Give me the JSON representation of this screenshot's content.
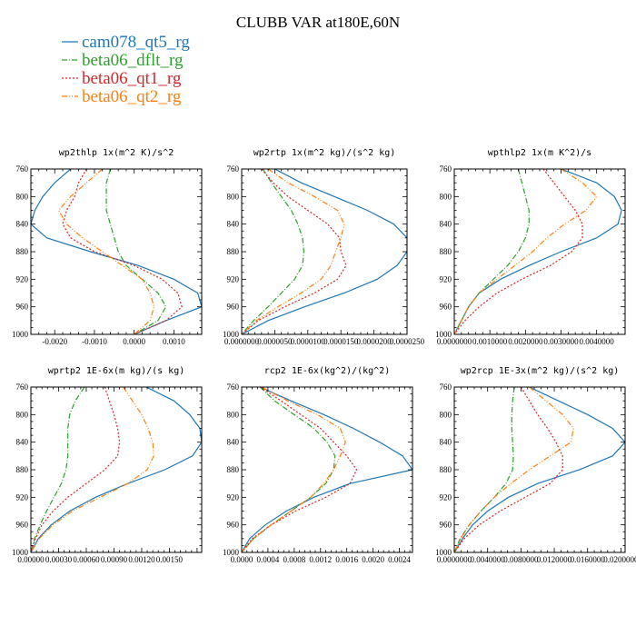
{
  "title": "CLUBB VAR at180E,60N",
  "colors": {
    "s0": "#1f77b4",
    "s1": "#2ca02c",
    "s2": "#d62728",
    "s3": "#ff7f0e"
  },
  "legend": [
    {
      "name": "cam078_qt5_rg",
      "color": "#1f77b4",
      "dash": "none"
    },
    {
      "name": "beta06_dflt_rg",
      "color": "#2ca02c",
      "dash": "6,2,1,2"
    },
    {
      "name": "beta06_qt1_rg",
      "color": "#d62728",
      "dash": "2,2"
    },
    {
      "name": "beta06_qt2_rg",
      "color": "#ff7f0e",
      "dash": "6,2,1,2,1,2"
    }
  ],
  "chart_data": [
    {
      "type": "line",
      "title": "wp2thlp  1x(m^2 K)/s^2",
      "xlim": [
        -0.0026,
        0.0017
      ],
      "ylim": [
        760,
        1000
      ],
      "y_inverted": true,
      "xticks": [
        -0.002,
        -0.001,
        0.0,
        0.001
      ],
      "xtick_labels": [
        "-0.0020",
        "-0.0010",
        "0.0000",
        "0.0010"
      ],
      "yticks": [
        760,
        800,
        840,
        880,
        920,
        960,
        1000
      ],
      "y": [
        760,
        780,
        800,
        820,
        840,
        860,
        880,
        900,
        920,
        940,
        960,
        980,
        1000
      ],
      "series": [
        {
          "name": "cam078_qt5_rg",
          "values": [
            -0.0016,
            -0.002,
            -0.0023,
            -0.0025,
            -0.0026,
            -0.0022,
            -0.0011,
            0.0001,
            0.001,
            0.0016,
            0.0017,
            0.0008,
            0.0
          ]
        },
        {
          "name": "beta06_dflt_rg",
          "values": [
            -0.0006,
            -0.0007,
            -0.0007,
            -0.0007,
            -0.0006,
            -0.0005,
            -0.0004,
            -0.0002,
            0.0002,
            0.0006,
            0.0008,
            0.0006,
            0.0
          ]
        },
        {
          "name": "beta06_qt1_rg",
          "values": [
            -0.0012,
            -0.0014,
            -0.0015,
            -0.0017,
            -0.0018,
            -0.0016,
            -0.001,
            0.0,
            0.0007,
            0.0011,
            0.0012,
            0.0008,
            0.0
          ]
        },
        {
          "name": "beta06_qt2_rg",
          "values": [
            -0.0008,
            -0.0012,
            -0.0016,
            -0.0019,
            -0.0017,
            -0.0013,
            -0.0008,
            -0.0003,
            0.0002,
            0.0004,
            0.0005,
            0.0004,
            0.0
          ]
        }
      ]
    },
    {
      "type": "line",
      "title": "wp2rtp  1x(m^2 kg)/(s^2 kg)",
      "xlim": [
        0.0,
        2.5e-05
      ],
      "ylim": [
        760,
        1000
      ],
      "y_inverted": true,
      "xticks": [
        0.0,
        5e-06,
        1e-05,
        1.5e-05,
        2e-05,
        2.5e-05
      ],
      "xtick_labels": [
        "0.0000000",
        "0.0000050",
        "0.0000100",
        "0.0000150",
        "0.0000200",
        "0.0000250"
      ],
      "yticks": [
        760,
        800,
        840,
        880,
        920,
        960,
        1000
      ],
      "y": [
        760,
        780,
        800,
        820,
        840,
        860,
        880,
        900,
        920,
        940,
        960,
        980,
        1000
      ],
      "series": [
        {
          "name": "cam078_qt5_rg",
          "values": [
            5e-06,
            9e-06,
            1.4e-05,
            1.9e-05,
            2.3e-05,
            2.5e-05,
            2.5e-05,
            2.35e-05,
            2.05e-05,
            1.55e-05,
            9.5e-06,
            4e-06,
            0.0
          ]
        },
        {
          "name": "beta06_dflt_rg",
          "values": [
            3.2e-06,
            4.5e-06,
            6e-06,
            7.5e-06,
            8.5e-06,
            9.2e-06,
            9.4e-06,
            9.2e-06,
            8e-06,
            6e-06,
            4e-06,
            1.8e-06,
            0.0
          ]
        },
        {
          "name": "beta06_qt1_rg",
          "values": [
            3e-06,
            4.8e-06,
            7e-06,
            1e-05,
            1.3e-05,
            1.48e-05,
            1.5e-05,
            1.58e-05,
            1.45e-05,
            1.1e-05,
            6.5e-06,
            2.5e-06,
            0.0
          ]
        },
        {
          "name": "beta06_qt2_rg",
          "values": [
            4e-06,
            7e-06,
            1.1e-05,
            1.45e-05,
            1.55e-05,
            1.5e-05,
            1.42e-05,
            1.35e-05,
            1.2e-05,
            9e-06,
            5.5e-06,
            2.2e-06,
            0.0
          ]
        }
      ]
    },
    {
      "type": "line",
      "title": "wpthlp2  1x(m K^2)/s",
      "xlim": [
        0.0,
        0.0048
      ],
      "ylim": [
        760,
        1000
      ],
      "y_inverted": true,
      "xticks": [
        0.0,
        0.001,
        0.002,
        0.003,
        0.004
      ],
      "xtick_labels": [
        "0.0000000",
        "0.0010000",
        "0.0020000",
        "0.0030000",
        "0.0040000"
      ],
      "yticks": [
        760,
        800,
        840,
        880,
        920,
        960,
        1000
      ],
      "y": [
        760,
        780,
        800,
        820,
        840,
        860,
        880,
        900,
        920,
        940,
        960,
        980,
        1000
      ],
      "series": [
        {
          "name": "cam078_qt5_rg",
          "values": [
            0.003,
            0.004,
            0.0045,
            0.0047,
            0.0046,
            0.004,
            0.003,
            0.0021,
            0.0013,
            0.0007,
            0.0004,
            0.0002,
            0.0
          ]
        },
        {
          "name": "beta06_dflt_rg",
          "values": [
            0.0018,
            0.0019,
            0.002,
            0.0021,
            0.0021,
            0.002,
            0.0018,
            0.0015,
            0.0011,
            0.0007,
            0.0004,
            0.0002,
            0.0
          ]
        },
        {
          "name": "beta06_qt1_rg",
          "values": [
            0.0025,
            0.0028,
            0.0031,
            0.0034,
            0.0036,
            0.0036,
            0.0033,
            0.0027,
            0.0019,
            0.0012,
            0.0007,
            0.0003,
            0.0
          ]
        },
        {
          "name": "beta06_qt2_rg",
          "values": [
            0.003,
            0.0036,
            0.004,
            0.0037,
            0.0031,
            0.0026,
            0.0022,
            0.0017,
            0.0012,
            0.0007,
            0.0004,
            0.0002,
            0.0
          ]
        }
      ]
    },
    {
      "type": "line",
      "title": "wprtp2  1E-6x(m kg)/(s kg)",
      "xlim": [
        0.0,
        0.00185
      ],
      "ylim": [
        760,
        1000
      ],
      "y_inverted": true,
      "xticks": [
        0.0,
        0.0003,
        0.0006,
        0.0009,
        0.0012,
        0.0015
      ],
      "xtick_labels": [
        "0.00000",
        "0.00030",
        "0.00060",
        "0.00090",
        "0.00120",
        "0.00150"
      ],
      "yticks": [
        760,
        800,
        840,
        880,
        920,
        960,
        1000
      ],
      "y": [
        760,
        780,
        800,
        820,
        840,
        860,
        880,
        900,
        920,
        940,
        960,
        980,
        1000
      ],
      "series": [
        {
          "name": "cam078_qt5_rg",
          "values": [
            0.00125,
            0.00155,
            0.00172,
            0.00183,
            0.00185,
            0.00175,
            0.00145,
            0.00105,
            0.0007,
            0.00042,
            0.00022,
            8e-05,
            0.0
          ]
        },
        {
          "name": "beta06_dflt_rg",
          "values": [
            0.00058,
            0.00048,
            0.00042,
            0.0004,
            0.0004,
            0.0004,
            0.00038,
            0.00033,
            0.00025,
            0.00017,
            0.0001,
            4e-05,
            0.0
          ]
        },
        {
          "name": "beta06_qt1_rg",
          "values": [
            0.0008,
            0.00085,
            0.0009,
            0.00094,
            0.00096,
            0.00094,
            0.0008,
            0.0006,
            0.0004,
            0.00024,
            0.00012,
            5e-05,
            0.0
          ]
        },
        {
          "name": "beta06_qt2_rg",
          "values": [
            0.001,
            0.0011,
            0.0012,
            0.00127,
            0.00132,
            0.00133,
            0.00126,
            0.00105,
            0.00075,
            0.00045,
            0.00024,
            9e-05,
            0.0
          ]
        }
      ]
    },
    {
      "type": "line",
      "title": "rcp2  1E-6x(kg^2)/(kg^2)",
      "xlim": [
        0.0,
        0.0026
      ],
      "ylim": [
        760,
        1000
      ],
      "y_inverted": true,
      "xticks": [
        0.0,
        0.0004,
        0.0008,
        0.0012,
        0.0016,
        0.002,
        0.0024
      ],
      "xtick_labels": [
        "0.0000",
        "0.0004",
        "0.0008",
        "0.0012",
        "0.0016",
        "0.0020",
        "0.0024"
      ],
      "yticks": [
        760,
        800,
        840,
        880,
        920,
        960,
        1000
      ],
      "y": [
        760,
        780,
        800,
        820,
        840,
        860,
        880,
        900,
        920,
        940,
        960,
        980,
        1000
      ],
      "series": [
        {
          "name": "cam078_qt5_rg",
          "values": [
            0.00028,
            0.00075,
            0.00125,
            0.0017,
            0.0021,
            0.00245,
            0.0026,
            0.00165,
            0.0011,
            0.00068,
            0.00036,
            0.00012,
            0.0
          ]
        },
        {
          "name": "beta06_dflt_rg",
          "values": [
            0.00028,
            0.0005,
            0.0008,
            0.0011,
            0.0013,
            0.00142,
            0.0014,
            0.00128,
            0.00105,
            0.00075,
            0.00045,
            0.00018,
            0.0
          ]
        },
        {
          "name": "beta06_qt1_rg",
          "values": [
            0.00028,
            0.0006,
            0.0009,
            0.0012,
            0.0014,
            0.0016,
            0.00175,
            0.00165,
            0.00128,
            0.00082,
            0.00045,
            0.00016,
            0.0
          ]
        },
        {
          "name": "beta06_qt2_rg",
          "values": [
            0.0003,
            0.0007,
            0.00115,
            0.0015,
            0.00158,
            0.0015,
            0.0014,
            0.00125,
            0.00105,
            0.00075,
            0.00045,
            0.00018,
            0.0
          ]
        }
      ]
    },
    {
      "type": "line",
      "title": "wp2rcp  1E-3x(m^2 kg)/(s^2 kg)",
      "xlim": [
        0.0,
        0.0205
      ],
      "ylim": [
        760,
        1000
      ],
      "y_inverted": true,
      "xticks": [
        0.0,
        0.004,
        0.008,
        0.012,
        0.016,
        0.02
      ],
      "xtick_labels": [
        "0.0000000",
        "0.0040000",
        "0.0080000",
        "0.0120000",
        "0.0160000",
        "0.0200000"
      ],
      "yticks": [
        760,
        800,
        840,
        880,
        920,
        960,
        1000
      ],
      "y": [
        760,
        780,
        800,
        820,
        840,
        860,
        880,
        900,
        920,
        940,
        960,
        980,
        1000
      ],
      "series": [
        {
          "name": "cam078_qt5_rg",
          "values": [
            0.009,
            0.0125,
            0.016,
            0.019,
            0.0205,
            0.019,
            0.015,
            0.01,
            0.0065,
            0.004,
            0.0022,
            0.001,
            0.0
          ]
        },
        {
          "name": "beta06_dflt_rg",
          "values": [
            0.0072,
            0.007,
            0.0069,
            0.0069,
            0.007,
            0.0071,
            0.007,
            0.0062,
            0.0048,
            0.0032,
            0.0018,
            0.0007,
            0.0
          ]
        },
        {
          "name": "beta06_qt1_rg",
          "values": [
            0.008,
            0.009,
            0.01,
            0.0112,
            0.0122,
            0.013,
            0.013,
            0.0115,
            0.0085,
            0.0055,
            0.003,
            0.0012,
            0.0
          ]
        },
        {
          "name": "beta06_qt2_rg",
          "values": [
            0.009,
            0.011,
            0.013,
            0.0143,
            0.014,
            0.0115,
            0.009,
            0.0068,
            0.0048,
            0.0032,
            0.0018,
            0.0008,
            0.0
          ]
        }
      ]
    }
  ]
}
